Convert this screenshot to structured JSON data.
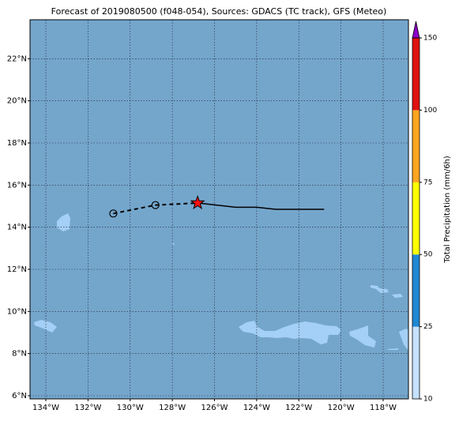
{
  "chart_data": {
    "type": "map",
    "title": "Forecast of 2019080500 (f048-054), Sources: GDACS (TC track), GFS (Meteo)",
    "xlim": [
      -134.75,
      -116.8
    ],
    "ylim": [
      5.85,
      23.85
    ],
    "xticks": [
      {
        "value": -134,
        "label": "134°W"
      },
      {
        "value": -132,
        "label": "132°W"
      },
      {
        "value": -130,
        "label": "130°W"
      },
      {
        "value": -128,
        "label": "128°W"
      },
      {
        "value": -126,
        "label": "126°W"
      },
      {
        "value": -124,
        "label": "124°W"
      },
      {
        "value": -122,
        "label": "122°W"
      },
      {
        "value": -120,
        "label": "120°W"
      },
      {
        "value": -118,
        "label": "118°W"
      }
    ],
    "yticks": [
      {
        "value": 6,
        "label": "6°N"
      },
      {
        "value": 8,
        "label": "8°N"
      },
      {
        "value": 10,
        "label": "10°N"
      },
      {
        "value": 12,
        "label": "12°N"
      },
      {
        "value": 14,
        "label": "14°N"
      },
      {
        "value": 16,
        "label": "16°N"
      },
      {
        "value": 18,
        "label": "18°N"
      },
      {
        "value": 20,
        "label": "20°N"
      },
      {
        "value": 22,
        "label": "22°N"
      }
    ],
    "grid": true,
    "past_track": {
      "x": [
        -130.8,
        -128.8,
        -126.8
      ],
      "y": [
        14.65,
        15.05,
        15.15
      ]
    },
    "forecast_track": {
      "x": [
        -126.8,
        -125.0,
        -124.0,
        -123.1,
        -120.8
      ],
      "y": [
        15.15,
        14.95,
        14.95,
        14.85,
        14.85
      ]
    },
    "colorbar": {
      "label": "Total Precipitation (mm/6h)",
      "ticks": [
        10,
        25,
        50,
        75,
        100,
        150
      ],
      "colors": [
        "#c6e2ff",
        "#1f88d4",
        "#ffff00",
        "#ffa520",
        "#e01010"
      ],
      "extend_color": "#8a00c8"
    }
  }
}
